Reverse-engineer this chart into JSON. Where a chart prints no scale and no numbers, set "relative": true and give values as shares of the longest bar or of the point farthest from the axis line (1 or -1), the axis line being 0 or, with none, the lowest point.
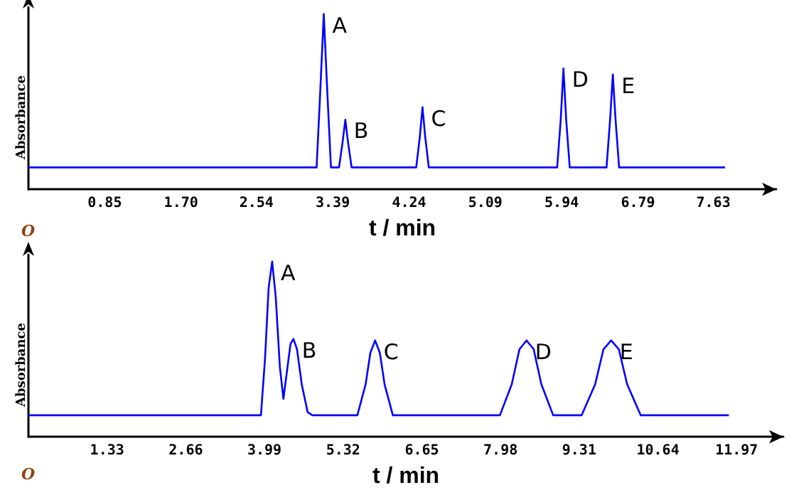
{
  "chart_data": [
    {
      "type": "line",
      "relative": true,
      "xlabel": "t / min",
      "ylabel": "Absorbance",
      "tick_labels": "x",
      "grid": false,
      "marker": "none",
      "line_style": "solid",
      "xlim": [
        0,
        8.33
      ],
      "xticks": [
        0.85,
        {
          "value": 1.7,
          "label": "1.70"
        },
        2.54,
        3.39,
        4.24,
        5.09,
        5.94,
        6.79,
        7.63
      ],
      "series": [
        {
          "color": "#0000ff",
          "x": [
            0,
            3.21,
            3.25,
            3.29,
            3.33,
            3.37,
            3.46,
            3.5,
            3.53,
            3.56,
            3.6,
            4.32,
            4.36,
            4.39,
            4.42,
            4.46,
            5.89,
            5.93,
            5.96,
            5.99,
            6.03,
            6.44,
            6.48,
            6.51,
            6.54,
            6.58,
            7.76
          ],
          "values": [
            0.125,
            0.125,
            0.55,
            1,
            0.55,
            0.125,
            0.125,
            0.27,
            0.397,
            0.27,
            0.125,
            0.125,
            0.3,
            0.468,
            0.3,
            0.125,
            0.125,
            0.4,
            0.69,
            0.4,
            0.125,
            0.125,
            0.4,
            0.655,
            0.4,
            0.125,
            0.125
          ]
        }
      ],
      "annotations": [
        "O",
        {
          "text": "A",
          "x": 3.29,
          "y": 1
        },
        {
          "text": "B",
          "x": 3.53,
          "y": 0.397
        },
        {
          "text": "C",
          "x": 4.39,
          "y": 0.468
        },
        {
          "text": "D",
          "x": 5.96,
          "y": 0.69
        },
        {
          "text": "E",
          "x": 6.51,
          "y": 0.655
        }
      ]
    },
    {
      "type": "line",
      "relative": true,
      "xlabel": "t / min",
      "ylabel": "Absorbance",
      "tick_labels": "x",
      "grid": false,
      "marker": "none",
      "line_style": "solid",
      "xlim": [
        0,
        12.76
      ],
      "xticks": [
        1.33,
        2.66,
        3.99,
        5.32,
        6.65,
        7.98,
        9.31,
        10.64,
        11.97
      ],
      "series": [
        {
          "color": "#0000ff",
          "x": [
            0,
            3.93,
            4.0,
            4.06,
            4.12,
            4.18,
            4.25,
            4.31,
            4.38,
            4.43,
            4.48,
            4.54,
            4.62,
            4.72,
            4.8,
            5.56,
            5.7,
            5.78,
            5.86,
            5.94,
            6.02,
            6.16,
            7.97,
            8.17,
            8.3,
            8.42,
            8.54,
            8.67,
            8.87,
            9.35,
            9.58,
            9.72,
            9.85,
            9.98,
            10.12,
            10.35,
            11.84
          ],
          "values": [
            0.123,
            0.123,
            0.45,
            0.85,
            1,
            0.8,
            0.4,
            0.217,
            0.4,
            0.53,
            0.558,
            0.5,
            0.3,
            0.14,
            0.123,
            0.123,
            0.3,
            0.48,
            0.55,
            0.48,
            0.3,
            0.123,
            0.123,
            0.3,
            0.5,
            0.55,
            0.5,
            0.3,
            0.123,
            0.123,
            0.3,
            0.5,
            0.55,
            0.5,
            0.3,
            0.123,
            0.123
          ]
        }
      ],
      "annotations": [
        "O",
        {
          "text": "A",
          "x": 4.12,
          "y": 1
        },
        {
          "text": "B",
          "x": 4.48,
          "y": 0.558
        },
        {
          "text": "C",
          "x": 5.86,
          "y": 0.55
        },
        {
          "text": "D",
          "x": 8.42,
          "y": 0.55
        },
        {
          "text": "E",
          "x": 9.85,
          "y": 0.55
        }
      ]
    }
  ]
}
